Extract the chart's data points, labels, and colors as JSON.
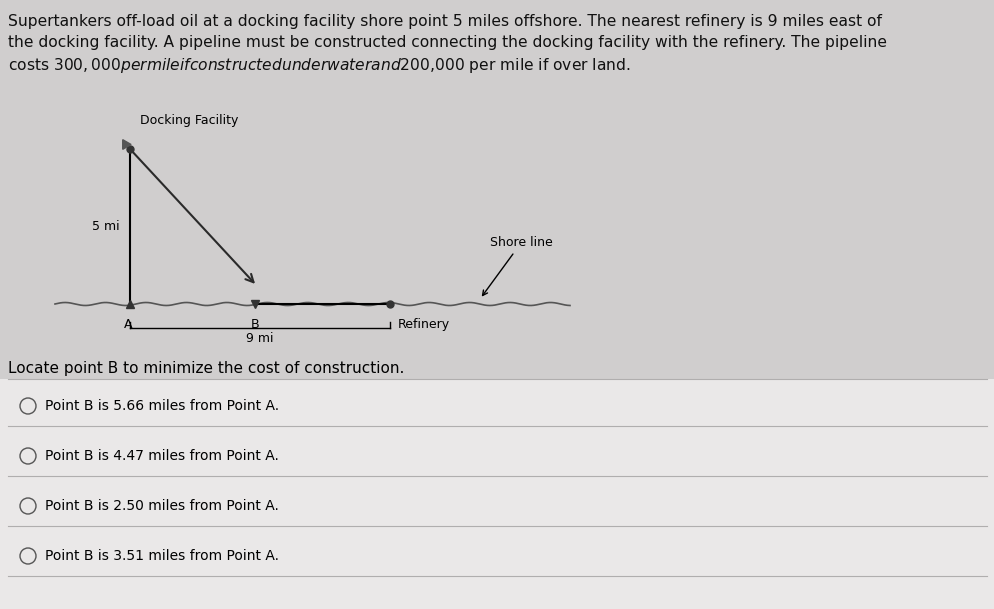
{
  "title_line1": "Supertankers off-load oil at a docking facility shore point 5 miles offshore. The nearest refinery is 9 miles east of",
  "title_line2": "the docking facility. A pipeline must be constructed connecting the docking facility with the refinery. The pipeline",
  "title_line3": "costs $300,000 per mile if constructed underwater and $200,000 per mile if over land.",
  "paragraph_text": "Locate point B to minimize the cost of construction.",
  "options": [
    "Point B is 5.66 miles from Point A.",
    "Point B is 4.47 miles from Point A.",
    "Point B is 2.50 miles from Point A.",
    "Point B is 3.51 miles from Point A."
  ],
  "bg_color_top": "#d0cece",
  "bg_color_bottom": "#e8e6e6",
  "text_color": "#000000",
  "fig_width": 9.95,
  "fig_height": 6.09,
  "dpi": 100
}
